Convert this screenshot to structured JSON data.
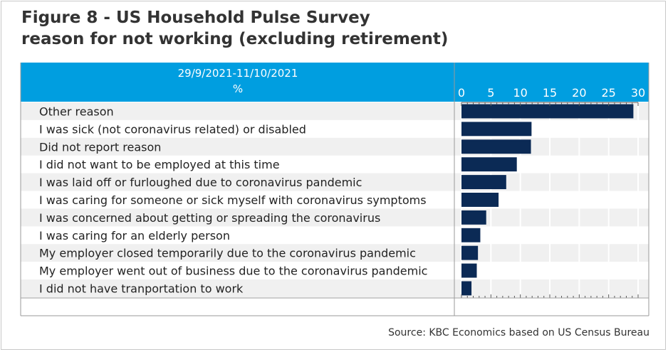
{
  "title_line1": "Figure 8 - US Household Pulse Survey",
  "title_line2": "reason for not working (excluding retirement)",
  "source": "Source: KBC Economics based on US Census Bureau",
  "colors": {
    "header": "#009ee0",
    "bar": "#0b2a55",
    "band": "#f0f0f0",
    "grid": "#ffffff"
  },
  "chart_data": {
    "type": "bar",
    "orientation": "horizontal",
    "column_header": [
      "29/9/2021-11/10/2021",
      "%"
    ],
    "categories": [
      "Other reason",
      "I was sick (not coronavirus related) or disabled",
      "Did not report reason",
      "I did not want to be employed at this time",
      "I was laid off or furloughed due to coronavirus pandemic",
      "I was caring for someone or sick myself with coronavirus symptoms",
      "I was concerned about getting or spreading the coronavirus",
      "I was caring for an elderly person",
      "My employer closed temporarily due to the coronavirus pandemic",
      "My employer went out of business due to the coronavirus pandemic",
      "I did not have tranportation to work"
    ],
    "values": [
      29.2,
      11.9,
      11.8,
      9.4,
      7.6,
      6.3,
      4.2,
      3.2,
      2.8,
      2.6,
      1.7
    ],
    "xlim": [
      0,
      30
    ],
    "xticks": [
      0,
      5,
      10,
      15,
      20,
      25,
      30
    ],
    "grid": true
  }
}
